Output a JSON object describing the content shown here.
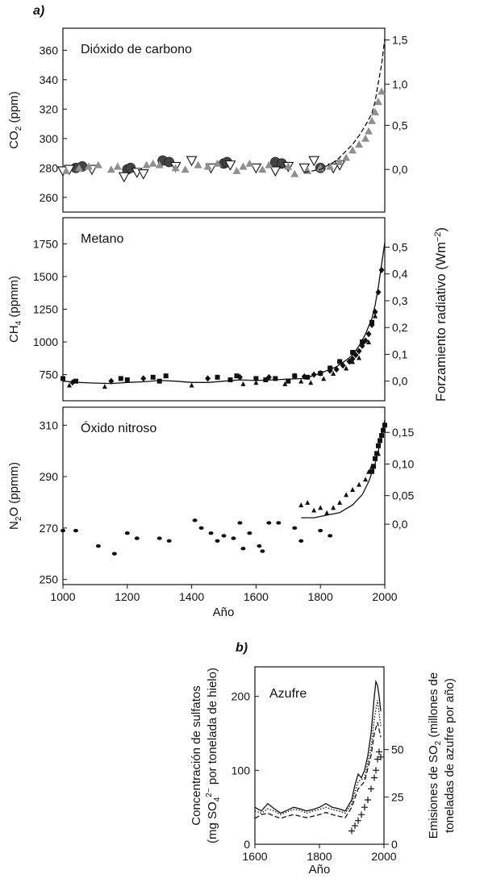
{
  "labels": {
    "panel_a": "a)",
    "panel_b": "b)",
    "radiative_forcing": "Forzamiento radiativo (Wm",
    "radiative_forcing_exp": "−2",
    "radiative_forcing_close": ")",
    "year": "Año"
  },
  "chart_data": [
    {
      "id": "co2",
      "type": "scatter",
      "title": "Dióxido de carbono",
      "ylabel_main": "CO",
      "ylabel_sub": "2",
      "ylabel_unit": "(ppm)",
      "xlim": [
        1000,
        2000
      ],
      "ylim": [
        250,
        375
      ],
      "left_ticks": [
        "260",
        "280",
        "300",
        "320",
        "340",
        "360"
      ],
      "left_tick_values": [
        260,
        280,
        300,
        320,
        340,
        360
      ],
      "right_ticks": [
        "0,0",
        "0,5",
        "1,0",
        "1,5"
      ],
      "right_tick_values": [
        279,
        309,
        337,
        367
      ],
      "series": [
        {
          "name": "circles",
          "marker": "circle-dark",
          "x": [
            1040,
            1060,
            1200,
            1210,
            1310,
            1330,
            1500,
            1510,
            1660,
            1680,
            1800
          ],
          "y": [
            280,
            281,
            279,
            280,
            285,
            284,
            283,
            284,
            284,
            283,
            280
          ]
        },
        {
          "name": "down-triangles",
          "marker": "triangle-down-open",
          "x": [
            1000,
            1020,
            1090,
            1190,
            1230,
            1250,
            1350,
            1400,
            1460,
            1520,
            1600,
            1660,
            1700,
            1750,
            1780,
            1840,
            1860
          ],
          "y": [
            278,
            279,
            279,
            274,
            277,
            276,
            281,
            285,
            280,
            282,
            280,
            278,
            281,
            280,
            285,
            280,
            282
          ]
        },
        {
          "name": "grey-triangles",
          "marker": "triangle-up-grey",
          "x": [
            1010,
            1050,
            1080,
            1110,
            1150,
            1170,
            1260,
            1280,
            1300,
            1350,
            1380,
            1420,
            1450,
            1480,
            1540,
            1560,
            1580,
            1620,
            1640,
            1700,
            1720,
            1760,
            1800,
            1830,
            1860,
            1880,
            1900,
            1920,
            1940,
            1950,
            1960,
            1970,
            1980,
            1990
          ],
          "y": [
            278,
            280,
            281,
            282,
            279,
            281,
            282,
            283,
            282,
            280,
            279,
            282,
            281,
            283,
            278,
            281,
            283,
            279,
            282,
            281,
            276,
            278,
            280,
            281,
            284,
            287,
            292,
            296,
            300,
            305,
            312,
            318,
            325,
            332
          ]
        },
        {
          "name": "dashed-trend",
          "marker": "line-dashed",
          "x": [
            1750,
            1800,
            1850,
            1900,
            1920,
            1940,
            1960,
            1970,
            1980,
            1990,
            2000
          ],
          "y": [
            277,
            279,
            285,
            296,
            302,
            309,
            317,
            325,
            338,
            350,
            368
          ]
        }
      ]
    },
    {
      "id": "ch4",
      "type": "scatter",
      "title": "Metano",
      "ylabel_main": "CH",
      "ylabel_sub": "4",
      "ylabel_unit": "(ppmm)",
      "xlim": [
        1000,
        2000
      ],
      "ylim": [
        550,
        1950
      ],
      "left_ticks": [
        "750",
        "1000",
        "1250",
        "1500",
        "1750"
      ],
      "left_tick_values": [
        750,
        1000,
        1250,
        1500,
        1750
      ],
      "right_ticks": [
        "0,0",
        "0,1",
        "0,2",
        "0,3",
        "0,4",
        "0,5"
      ],
      "right_tick_values": [
        700,
        905,
        1110,
        1315,
        1520,
        1725
      ],
      "series": [
        {
          "name": "squares",
          "marker": "square",
          "x": [
            1000,
            1040,
            1180,
            1200,
            1280,
            1300,
            1320,
            1480,
            1520,
            1540,
            1600,
            1630,
            1660,
            1700,
            1720,
            1760,
            1800,
            1830,
            1860,
            1900,
            1930,
            1960
          ],
          "y": [
            720,
            700,
            720,
            710,
            730,
            700,
            740,
            730,
            710,
            740,
            720,
            710,
            720,
            700,
            740,
            730,
            760,
            800,
            850,
            920,
            1000,
            1150
          ]
        },
        {
          "name": "diamonds",
          "marker": "diamond",
          "x": [
            1030,
            1150,
            1250,
            1450,
            1550,
            1640,
            1720,
            1750,
            1780,
            1800,
            1830,
            1850,
            1870,
            1890,
            1900,
            1910,
            1920,
            1930,
            1940,
            1950,
            1960,
            1970,
            1980,
            1990
          ],
          "y": [
            690,
            700,
            720,
            720,
            730,
            730,
            740,
            735,
            750,
            760,
            780,
            790,
            820,
            850,
            870,
            900,
            930,
            970,
            1010,
            1060,
            1130,
            1230,
            1380,
            1550
          ]
        },
        {
          "name": "triangles",
          "marker": "triangle-up-black",
          "x": [
            1020,
            1130,
            1400,
            1560,
            1600,
            1690,
            1740,
            1770,
            1810,
            1840,
            1880,
            1900,
            1920,
            1950,
            1970
          ],
          "y": [
            670,
            660,
            670,
            680,
            690,
            680,
            700,
            690,
            720,
            760,
            800,
            850,
            880,
            1000,
            1200
          ]
        },
        {
          "name": "fit-line",
          "marker": "line",
          "x": [
            1000,
            1050,
            1100,
            1150,
            1200,
            1250,
            1300,
            1350,
            1400,
            1450,
            1500,
            1550,
            1600,
            1650,
            1700,
            1750,
            1800,
            1850,
            1880,
            1900,
            1920,
            1940,
            1960,
            1970,
            1980,
            1990,
            2000
          ],
          "y": [
            700,
            690,
            685,
            682,
            690,
            695,
            705,
            700,
            690,
            690,
            700,
            710,
            705,
            710,
            715,
            720,
            760,
            810,
            860,
            900,
            970,
            1060,
            1180,
            1280,
            1420,
            1590,
            1760
          ]
        }
      ]
    },
    {
      "id": "n2o",
      "type": "scatter",
      "title": "Óxido nitroso",
      "ylabel_main": "N",
      "ylabel_sub": "2",
      "ylabel_unit": "O  (ppmm)",
      "xlim": [
        1000,
        2000
      ],
      "ylim": [
        248,
        317
      ],
      "left_ticks": [
        "250",
        "270",
        "290",
        "310"
      ],
      "left_tick_values": [
        250,
        270,
        290,
        310
      ],
      "right_ticks": [
        "0,0",
        "0,05",
        "0,10",
        "0,15"
      ],
      "right_tick_values": [
        271.5,
        282.6,
        294.9,
        307.2
      ],
      "series": [
        {
          "name": "dots",
          "marker": "dot",
          "x": [
            1000,
            1040,
            1110,
            1160,
            1200,
            1230,
            1300,
            1330,
            1410,
            1430,
            1460,
            1480,
            1500,
            1530,
            1550,
            1560,
            1580,
            1610,
            1620,
            1640,
            1670,
            1720,
            1740,
            1800,
            1830
          ],
          "y": [
            269,
            269,
            263,
            260,
            268,
            266,
            266,
            265,
            273,
            270,
            268,
            265,
            267,
            266,
            272,
            262,
            268,
            263,
            261,
            272,
            272,
            270,
            265,
            269,
            267
          ]
        },
        {
          "name": "triangles",
          "marker": "triangle-up-black",
          "x": [
            1740,
            1760,
            1780,
            1800,
            1820,
            1840,
            1860,
            1880,
            1900,
            1920,
            1940,
            1950,
            1960,
            1970,
            1980
          ],
          "y": [
            279,
            280,
            277,
            278,
            276,
            278,
            280,
            283,
            285,
            287,
            289,
            292,
            294,
            297,
            299
          ]
        },
        {
          "name": "squares",
          "marker": "square",
          "x": [
            1960,
            1965,
            1970,
            1975,
            1980,
            1985,
            1990,
            1995,
            2000
          ],
          "y": [
            292,
            294,
            297,
            299,
            302,
            304,
            306,
            308,
            310
          ]
        },
        {
          "name": "fit-line",
          "marker": "line",
          "x": [
            1740,
            1780,
            1820,
            1860,
            1900,
            1930,
            1950,
            1970,
            1980,
            1990,
            2000
          ],
          "y": [
            274,
            274,
            275,
            276,
            279,
            283,
            288,
            295,
            300,
            306,
            312
          ]
        }
      ]
    },
    {
      "id": "sulfur",
      "type": "line",
      "title": "Azufre",
      "xlabel": "Año",
      "ylabel_left_line1": "Concentración de sulfatos",
      "ylabel_left_line2a": "(mg SO",
      "ylabel_left_line2sub": "4",
      "ylabel_left_line2sup": "2−",
      "ylabel_left_line2b": " por tonelada de hielo)",
      "ylabel_right_line1a": "Emisiones de SO",
      "ylabel_right_line1sub": "2",
      "ylabel_right_line1b": " (millones de",
      "ylabel_right_line2": "toneladas de azufre por año)",
      "xlim": [
        1600,
        2000
      ],
      "ylim": [
        0,
        240
      ],
      "x_ticks": [
        "1600",
        "1800",
        "2000"
      ],
      "x_tick_values": [
        1600,
        1800,
        2000
      ],
      "left_ticks": [
        "0",
        "100",
        "200"
      ],
      "left_tick_values": [
        0,
        100,
        200
      ],
      "right_ticks": [
        "0",
        "25",
        "50"
      ],
      "right_tick_values": [
        0,
        64,
        128
      ],
      "series": [
        {
          "name": "solid",
          "marker": "line",
          "x": [
            1600,
            1620,
            1640,
            1660,
            1680,
            1700,
            1720,
            1740,
            1760,
            1780,
            1800,
            1820,
            1840,
            1860,
            1880,
            1900,
            1910,
            1920,
            1930,
            1940,
            1950,
            1960,
            1965,
            1970,
            1975,
            1980,
            1985,
            1990
          ],
          "y": [
            50,
            45,
            55,
            48,
            42,
            46,
            50,
            48,
            45,
            47,
            50,
            55,
            50,
            48,
            45,
            60,
            80,
            95,
            90,
            100,
            120,
            150,
            175,
            200,
            220,
            215,
            200,
            180
          ]
        },
        {
          "name": "dotted",
          "marker": "line-dotted",
          "x": [
            1600,
            1620,
            1640,
            1660,
            1680,
            1700,
            1720,
            1740,
            1760,
            1780,
            1800,
            1820,
            1840,
            1860,
            1880,
            1900,
            1920,
            1940,
            1960,
            1970,
            1980,
            1990
          ],
          "y": [
            45,
            42,
            48,
            45,
            40,
            44,
            47,
            46,
            42,
            45,
            47,
            50,
            47,
            45,
            42,
            55,
            85,
            90,
            130,
            170,
            195,
            160
          ]
        },
        {
          "name": "dashed",
          "marker": "line-dashed",
          "x": [
            1600,
            1620,
            1640,
            1660,
            1680,
            1700,
            1720,
            1740,
            1760,
            1780,
            1800,
            1820,
            1840,
            1860,
            1880,
            1900,
            1920,
            1940,
            1960,
            1970,
            1980,
            1990
          ],
          "y": [
            35,
            40,
            42,
            38,
            35,
            38,
            40,
            38,
            36,
            38,
            40,
            43,
            40,
            38,
            36,
            50,
            75,
            85,
            120,
            150,
            165,
            145
          ]
        },
        {
          "name": "emissions-crosses",
          "marker": "plus",
          "x": [
            1900,
            1910,
            1920,
            1930,
            1940,
            1950,
            1960,
            1970,
            1975,
            1980,
            1985,
            1990
          ],
          "y": [
            18,
            25,
            32,
            40,
            50,
            60,
            75,
            90,
            100,
            115,
            125,
            118
          ]
        }
      ]
    }
  ]
}
